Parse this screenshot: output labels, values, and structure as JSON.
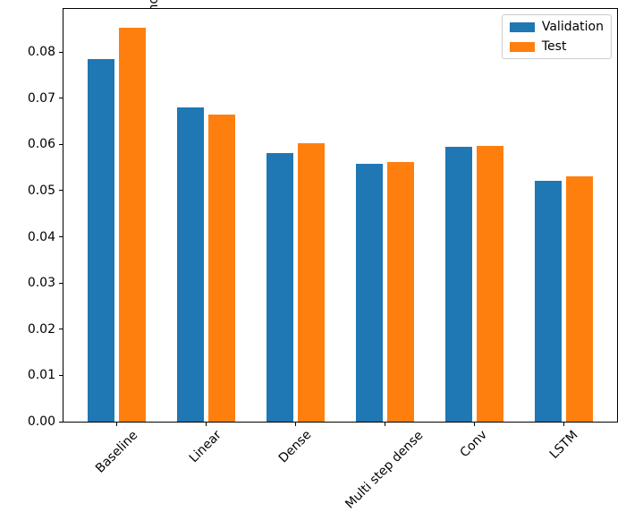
{
  "chart_data": {
    "type": "bar",
    "title": "",
    "categories": [
      "Baseline",
      "Linear",
      "Dense",
      "Multi step dense",
      "Conv",
      "LSTM"
    ],
    "series": [
      {
        "name": "Validation",
        "color": "#1f77b4",
        "values": [
          0.0785,
          0.0679,
          0.0582,
          0.0557,
          0.0594,
          0.0522
        ]
      },
      {
        "name": "Test",
        "color": "#ff7f0e",
        "values": [
          0.0852,
          0.0664,
          0.0603,
          0.0561,
          0.0596,
          0.0531
        ]
      }
    ],
    "xlabel": "",
    "ylabel": "mean_absolute_error [T (degC), normalized]",
    "ylim": [
      0,
      0.0895
    ],
    "ytick_values": [
      0.0,
      0.01,
      0.02,
      0.03,
      0.04,
      0.05,
      0.06,
      0.07,
      0.08
    ],
    "ytick_labels": [
      "0.00",
      "0.01",
      "0.02",
      "0.03",
      "0.04",
      "0.05",
      "0.06",
      "0.07",
      "0.08"
    ],
    "x_tick_rotation_deg": 45,
    "grid": false,
    "legend": {
      "position": "upper right",
      "entries": [
        "Validation",
        "Test"
      ]
    }
  }
}
